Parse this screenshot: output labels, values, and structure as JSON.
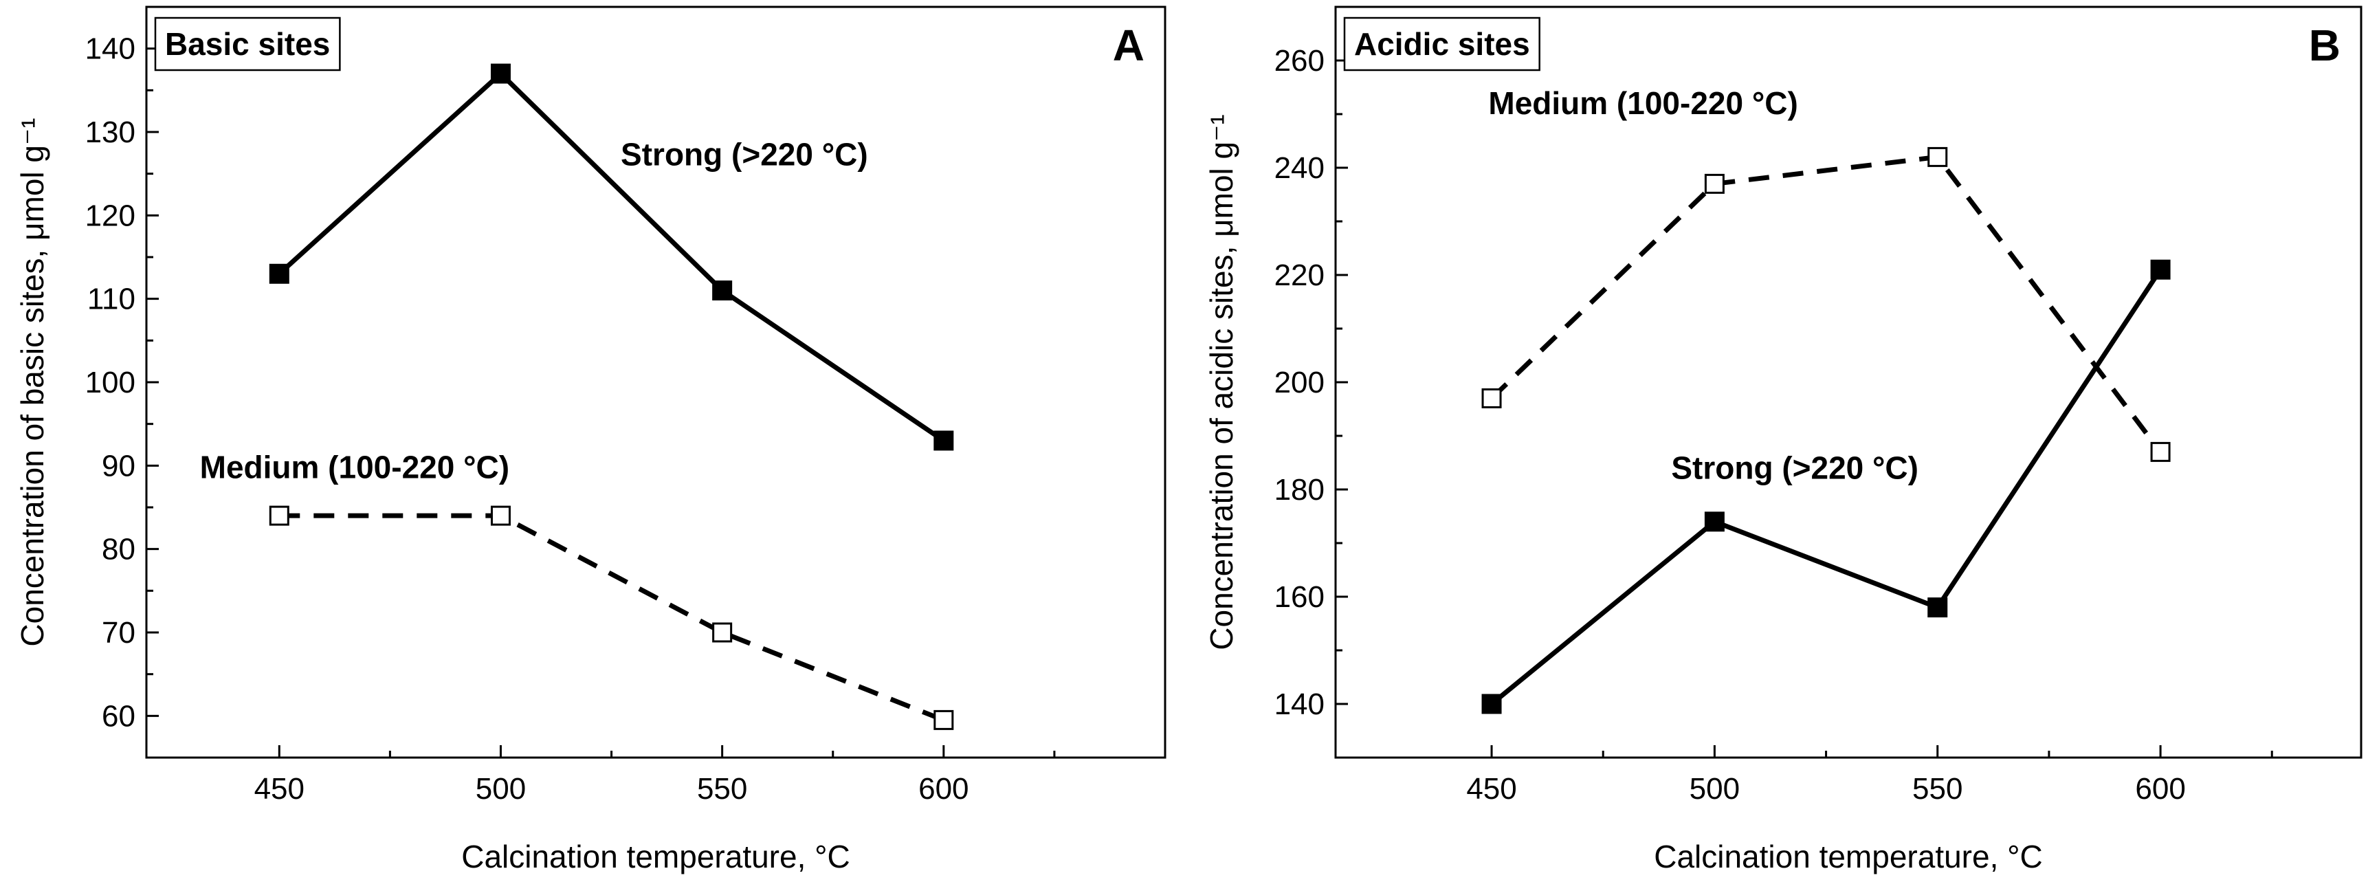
{
  "chart_data": [
    {
      "type": "line",
      "panel_letter": "A",
      "title": "Basic sites",
      "xlabel": "Calcination temperature, °C",
      "ylabel": "Concentration of basic sites, μmol g⁻¹",
      "xlim": [
        420,
        650
      ],
      "ylim": [
        55,
        145
      ],
      "xticks": [
        450,
        500,
        550,
        600
      ],
      "xticks_minor": [
        475,
        525,
        575,
        625
      ],
      "yticks": [
        60,
        70,
        80,
        90,
        100,
        110,
        120,
        130,
        140
      ],
      "x": [
        450,
        500,
        550,
        600
      ],
      "series": [
        {
          "name": "Strong",
          "label": "Strong   (>220 °C)",
          "values": [
            113,
            137,
            111,
            93
          ],
          "style": "solid",
          "marker": "filled-square",
          "color": "#000000"
        },
        {
          "name": "Medium",
          "label": "Medium (100-220 °C)",
          "values": [
            84,
            84,
            70,
            59.5
          ],
          "style": "dashed",
          "marker": "open-square",
          "color": "#000000"
        }
      ],
      "annotations": [
        {
          "series": "Strong",
          "text": "Strong   (>220 °C)",
          "x": 555,
          "y": 126
        },
        {
          "series": "Medium",
          "text": "Medium (100-220 °C)",
          "x": 467,
          "y": 88.5
        }
      ]
    },
    {
      "type": "line",
      "panel_letter": "B",
      "title": "Acidic sites",
      "xlabel": "Calcination temperature, °C",
      "ylabel": "Concentration of acidic sites, μmol g⁻¹",
      "xlim": [
        415,
        645
      ],
      "ylim": [
        130,
        270
      ],
      "xticks": [
        450,
        500,
        550,
        600
      ],
      "xticks_minor": [
        475,
        525,
        575,
        625
      ],
      "yticks": [
        140,
        160,
        180,
        200,
        220,
        240,
        260
      ],
      "x": [
        450,
        500,
        550,
        600
      ],
      "series": [
        {
          "name": "Strong",
          "label": "Strong  (>220 °C)",
          "values": [
            140,
            174,
            158,
            221
          ],
          "style": "solid",
          "marker": "filled-square",
          "color": "#000000"
        },
        {
          "name": "Medium",
          "label": "Medium (100-220 °C)",
          "values": [
            197,
            237,
            242,
            187
          ],
          "style": "dashed",
          "marker": "open-square",
          "color": "#000000"
        }
      ],
      "annotations": [
        {
          "series": "Strong",
          "text": "Strong  (>220 °C)",
          "x": 518,
          "y": 182
        },
        {
          "series": "Medium",
          "text": "Medium (100-220 °C)",
          "x": 484,
          "y": 250
        }
      ]
    }
  ]
}
